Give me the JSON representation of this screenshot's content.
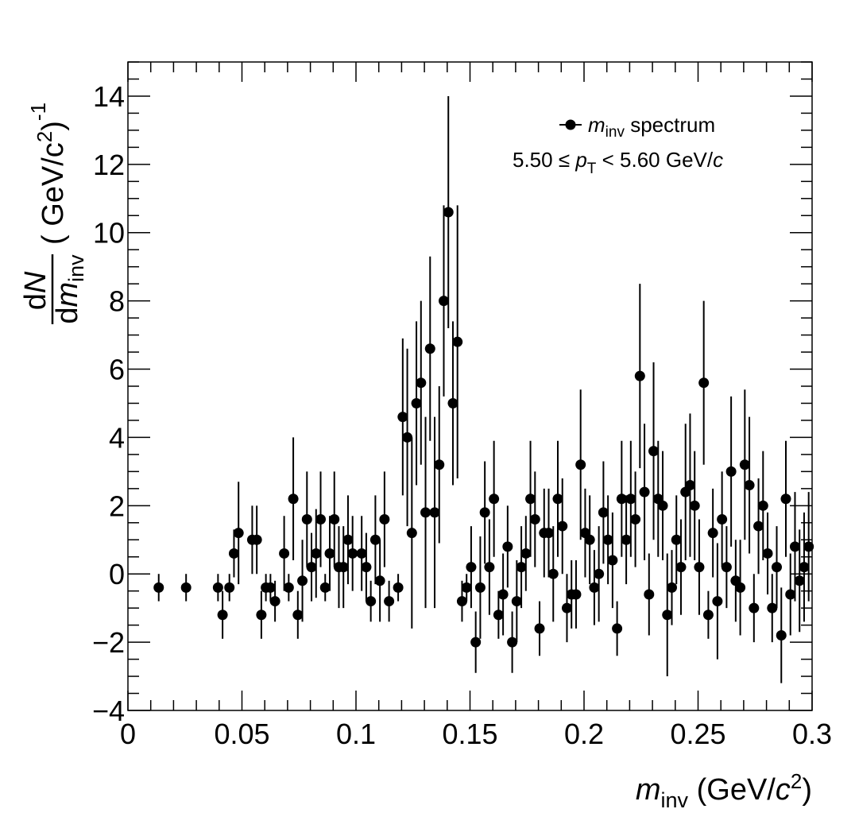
{
  "chart_data": {
    "type": "scatter",
    "xlim": [
      0,
      0.3
    ],
    "ylim": [
      -4,
      15
    ],
    "x_ticks": [
      {
        "value": 0,
        "label": "0"
      },
      {
        "value": 0.05,
        "label": "0.05"
      },
      {
        "value": 0.1,
        "label": "0.1"
      },
      {
        "value": 0.15,
        "label": "0.15"
      },
      {
        "value": 0.2,
        "label": "0.2"
      },
      {
        "value": 0.25,
        "label": "0.25"
      },
      {
        "value": 0.3,
        "label": "0.3"
      }
    ],
    "y_ticks": [
      {
        "value": -4,
        "label": "−4"
      },
      {
        "value": -2,
        "label": "−2"
      },
      {
        "value": 0,
        "label": "0"
      },
      {
        "value": 2,
        "label": "2"
      },
      {
        "value": 4,
        "label": "4"
      },
      {
        "value": 6,
        "label": "6"
      },
      {
        "value": 8,
        "label": "8"
      },
      {
        "value": 10,
        "label": "10"
      },
      {
        "value": 12,
        "label": "12"
      },
      {
        "value": 14,
        "label": "14"
      }
    ],
    "xlabel": {
      "main": "m",
      "sub": "inv",
      "rest": " (GeV/",
      "c": "c",
      "sup": "2",
      "close": ")"
    },
    "ylabel": {
      "num": "dN",
      "den": "dm",
      "den_sub": "inv",
      "unit": "( GeV/c",
      "unit_sup": "2",
      "unit_close": ")",
      "exp": "-1"
    },
    "legend": {
      "m": "m",
      "sub": "inv",
      "text": " spectrum",
      "placement": "top-right"
    },
    "annotation": {
      "pre": "5.50 ≤ ",
      "p": "p",
      "sub": "T",
      "post": " < 5.60 GeV/",
      "c": "c"
    },
    "grid": false,
    "series": [
      {
        "points": [
          [
            0.0135,
            -0.4,
            0.4
          ],
          [
            0.0255,
            -0.4,
            0.4
          ],
          [
            0.0395,
            -0.4,
            0.4
          ],
          [
            0.0415,
            -1.2,
            0.7
          ],
          [
            0.0445,
            -0.4,
            0.4
          ],
          [
            0.0465,
            0.6,
            0.7
          ],
          [
            0.0485,
            1.2,
            1.5
          ],
          [
            0.0545,
            1.0,
            1.0
          ],
          [
            0.0565,
            1.0,
            1.0
          ],
          [
            0.0585,
            -1.2,
            0.7
          ],
          [
            0.0605,
            -0.4,
            0.4
          ],
          [
            0.0625,
            -0.4,
            0.4
          ],
          [
            0.0645,
            -0.8,
            0.6
          ],
          [
            0.0685,
            0.6,
            1.1
          ],
          [
            0.0705,
            -0.4,
            0.4
          ],
          [
            0.0725,
            2.2,
            1.8
          ],
          [
            0.0745,
            -1.2,
            0.7
          ],
          [
            0.0765,
            -0.2,
            1.2
          ],
          [
            0.0785,
            1.6,
            1.4
          ],
          [
            0.0805,
            0.2,
            1.0
          ],
          [
            0.0825,
            0.6,
            1.3
          ],
          [
            0.0845,
            1.6,
            1.4
          ],
          [
            0.0865,
            -0.4,
            0.4
          ],
          [
            0.0885,
            0.6,
            1.1
          ],
          [
            0.0905,
            1.6,
            1.4
          ],
          [
            0.0925,
            0.2,
            1.2
          ],
          [
            0.0945,
            0.2,
            1.2
          ],
          [
            0.0965,
            1.0,
            1.3
          ],
          [
            0.0985,
            0.6,
            1.1
          ],
          [
            0.1025,
            0.6,
            1.1
          ],
          [
            0.1045,
            0.2,
            1.0
          ],
          [
            0.1065,
            -0.8,
            0.6
          ],
          [
            0.1085,
            1.0,
            1.3
          ],
          [
            0.1105,
            -0.2,
            1.2
          ],
          [
            0.1125,
            1.6,
            1.4
          ],
          [
            0.1145,
            -0.8,
            0.6
          ],
          [
            0.1185,
            -0.4,
            0.4
          ],
          [
            0.1205,
            4.6,
            2.3
          ],
          [
            0.1225,
            4.0,
            2.6
          ],
          [
            0.1245,
            1.2,
            2.8
          ],
          [
            0.1265,
            5.0,
            2.4
          ],
          [
            0.1285,
            5.6,
            2.4
          ],
          [
            0.1305,
            1.8,
            2.8
          ],
          [
            0.1325,
            6.6,
            2.7
          ],
          [
            0.1345,
            1.8,
            2.8
          ],
          [
            0.1365,
            3.2,
            2.3
          ],
          [
            0.1385,
            8.0,
            2.8
          ],
          [
            0.1405,
            10.6,
            3.4
          ],
          [
            0.1425,
            5.0,
            2.4
          ],
          [
            0.1445,
            6.8,
            4.0
          ],
          [
            0.1465,
            -0.8,
            0.6
          ],
          [
            0.1485,
            -0.4,
            0.4
          ],
          [
            0.1505,
            0.2,
            1.2
          ],
          [
            0.1525,
            -2.0,
            0.9
          ],
          [
            0.1545,
            -0.4,
            1.5
          ],
          [
            0.1565,
            1.8,
            1.5
          ],
          [
            0.1585,
            0.2,
            1.4
          ],
          [
            0.1605,
            2.2,
            1.7
          ],
          [
            0.1625,
            -1.2,
            0.7
          ],
          [
            0.1645,
            -0.6,
            1.2
          ],
          [
            0.1665,
            0.8,
            1.2
          ],
          [
            0.1685,
            -2.0,
            0.9
          ],
          [
            0.1705,
            -0.8,
            1.2
          ],
          [
            0.1725,
            0.2,
            1.2
          ],
          [
            0.1745,
            0.6,
            1.1
          ],
          [
            0.1765,
            2.2,
            1.7
          ],
          [
            0.1785,
            1.6,
            1.4
          ],
          [
            0.1805,
            -1.6,
            0.8
          ],
          [
            0.1825,
            1.2,
            1.3
          ],
          [
            0.1845,
            1.2,
            1.3
          ],
          [
            0.1865,
            0.0,
            1.4
          ],
          [
            0.1885,
            2.2,
            1.7
          ],
          [
            0.1905,
            1.4,
            1.4
          ],
          [
            0.1925,
            -1.0,
            1.0
          ],
          [
            0.1945,
            -0.6,
            1.0
          ],
          [
            0.1965,
            -0.6,
            1.0
          ],
          [
            0.1985,
            3.2,
            2.2
          ],
          [
            0.2005,
            1.2,
            1.3
          ],
          [
            0.2025,
            1.0,
            1.3
          ],
          [
            0.2045,
            -0.4,
            1.1
          ],
          [
            0.2065,
            0.0,
            1.4
          ],
          [
            0.2085,
            1.8,
            1.5
          ],
          [
            0.2105,
            1.0,
            1.3
          ],
          [
            0.2125,
            0.4,
            1.4
          ],
          [
            0.2145,
            -1.6,
            0.8
          ],
          [
            0.2165,
            2.2,
            1.7
          ],
          [
            0.2185,
            1.0,
            1.3
          ],
          [
            0.2205,
            2.2,
            1.7
          ],
          [
            0.2225,
            1.6,
            1.4
          ],
          [
            0.2245,
            5.8,
            2.7
          ],
          [
            0.2265,
            2.4,
            2.0
          ],
          [
            0.2285,
            -0.6,
            1.2
          ],
          [
            0.2305,
            3.6,
            2.6
          ],
          [
            0.2325,
            2.2,
            1.7
          ],
          [
            0.2345,
            2.0,
            1.6
          ],
          [
            0.2365,
            -1.2,
            1.8
          ],
          [
            0.2385,
            -0.4,
            1.1
          ],
          [
            0.2405,
            1.0,
            1.3
          ],
          [
            0.2425,
            0.2,
            1.4
          ],
          [
            0.2445,
            2.4,
            2.0
          ],
          [
            0.2465,
            2.6,
            2.1
          ],
          [
            0.2485,
            2.0,
            1.6
          ],
          [
            0.2505,
            0.2,
            1.4
          ],
          [
            0.2525,
            5.6,
            2.4
          ],
          [
            0.2545,
            -1.2,
            0.7
          ],
          [
            0.2565,
            1.2,
            1.3
          ],
          [
            0.2585,
            -0.8,
            1.7
          ],
          [
            0.2605,
            1.6,
            1.4
          ],
          [
            0.2625,
            0.2,
            1.2
          ],
          [
            0.2645,
            3.0,
            2.2
          ],
          [
            0.2665,
            -0.2,
            1.2
          ],
          [
            0.2685,
            -0.4,
            1.4
          ],
          [
            0.2705,
            3.2,
            2.2
          ],
          [
            0.2725,
            2.6,
            2.0
          ],
          [
            0.2745,
            -1.0,
            1.0
          ],
          [
            0.2765,
            1.4,
            1.4
          ],
          [
            0.2785,
            2.0,
            1.6
          ],
          [
            0.2805,
            0.6,
            1.2
          ],
          [
            0.2825,
            -1.0,
            1.0
          ],
          [
            0.2845,
            0.2,
            1.2
          ],
          [
            0.2865,
            -1.8,
            1.4
          ],
          [
            0.2885,
            2.2,
            1.7
          ],
          [
            0.2905,
            -0.6,
            1.2
          ],
          [
            0.2925,
            0.8,
            1.6
          ],
          [
            0.2945,
            -0.2,
            1.5
          ],
          [
            0.2965,
            0.2,
            1.6
          ],
          [
            0.2985,
            0.8,
            1.6
          ]
        ]
      }
    ]
  }
}
